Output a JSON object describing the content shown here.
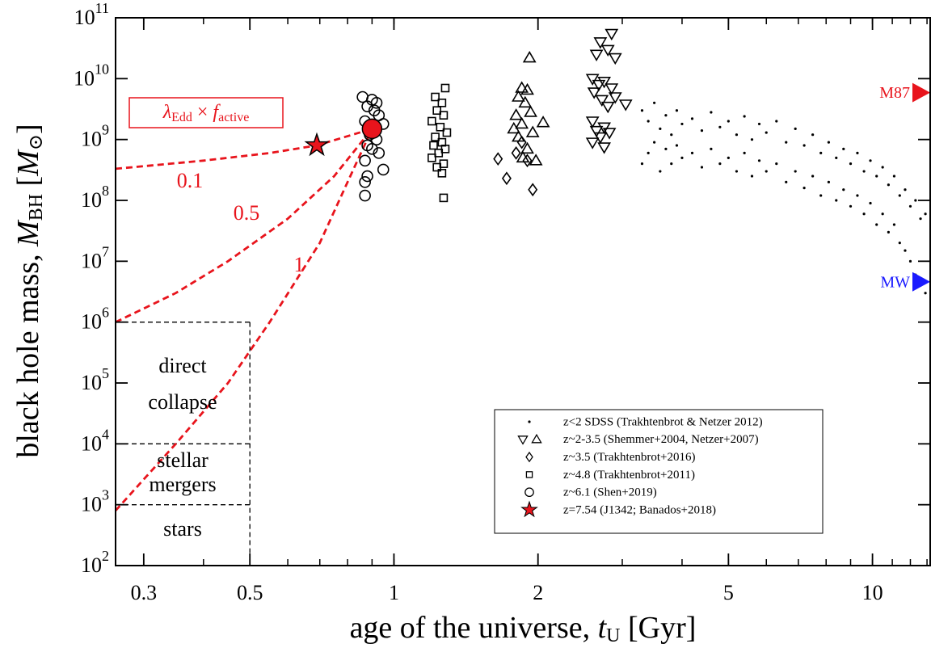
{
  "chart_data": {
    "type": "scatter",
    "xscale": "log",
    "yscale": "log",
    "xlim": [
      0.262,
      13.2
    ],
    "ylim": [
      100,
      100000000000.0
    ],
    "xticks": [
      0.3,
      0.5,
      1,
      2,
      5,
      10
    ],
    "xminor": [
      0.3,
      0.4,
      0.5,
      0.6,
      0.7,
      0.8,
      0.9,
      1,
      2,
      3,
      4,
      5,
      6,
      7,
      8,
      9,
      10,
      11,
      12,
      13
    ],
    "yticks": [
      {
        "value": 100,
        "label": "10",
        "exponent": "2"
      },
      {
        "value": 1000,
        "label": "10",
        "exponent": "3"
      },
      {
        "value": 10000,
        "label": "10",
        "exponent": "4"
      },
      {
        "value": 100000,
        "label": "10",
        "exponent": "5"
      },
      {
        "value": 1000000,
        "label": "10",
        "exponent": "6"
      },
      {
        "value": 10000000.0,
        "label": "10",
        "exponent": "7"
      },
      {
        "value": 100000000.0,
        "label": "10",
        "exponent": "8"
      },
      {
        "value": 1000000000.0,
        "label": "10",
        "exponent": "9"
      },
      {
        "value": 10000000000.0,
        "label": "10",
        "exponent": "10"
      },
      {
        "value": 100000000000.0,
        "label": "10",
        "exponent": "11"
      }
    ],
    "xlabel": {
      "text": "age of the universe, ",
      "sym": "t",
      "sub": "U",
      "unit": " [Gyr]"
    },
    "ylabel": {
      "text": "black hole mass, ",
      "sym": "M",
      "sub": "BH",
      "unit_open": " [",
      "unit_sym": "M",
      "unit_sub": "⊙",
      "unit_close": "]"
    },
    "series": [
      {
        "name": "z<2 SDSS (Trakhtenbrot & Netzer 2012)",
        "marker": "dot",
        "color": "#000000",
        "x": [
          3.3,
          3.3,
          3.4,
          3.4,
          3.5,
          3.5,
          3.6,
          3.6,
          3.7,
          3.7,
          3.8,
          3.8,
          3.9,
          3.9,
          4.0,
          4.0,
          4.2,
          4.2,
          4.4,
          4.4,
          4.6,
          4.6,
          4.8,
          4.8,
          5.0,
          5.0,
          5.2,
          5.2,
          5.4,
          5.4,
          5.6,
          5.6,
          5.8,
          5.8,
          6.0,
          6.0,
          6.3,
          6.3,
          6.6,
          6.6,
          6.9,
          6.9,
          7.2,
          7.2,
          7.5,
          7.5,
          7.8,
          7.8,
          8.1,
          8.1,
          8.4,
          8.4,
          8.7,
          8.7,
          9.0,
          9.0,
          9.3,
          9.3,
          9.6,
          9.6,
          9.9,
          9.9,
          10.2,
          10.2,
          10.5,
          10.5,
          10.8,
          10.8,
          11.1,
          11.1,
          11.4,
          11.4,
          11.7,
          11.7,
          12.0,
          12.0,
          12.3,
          12.3,
          12.6,
          12.6,
          12.9,
          12.9
        ],
        "y": [
          3000000000.0,
          400000000.0,
          2000000000.0,
          600000000.0,
          4000000000.0,
          900000000.0,
          1500000000.0,
          300000000.0,
          2500000000.0,
          700000000.0,
          1200000000.0,
          400000000.0,
          3000000000.0,
          800000000.0,
          1800000000.0,
          500000000.0,
          2200000000.0,
          600000000.0,
          1400000000.0,
          350000000.0,
          2800000000.0,
          700000000.0,
          1600000000.0,
          400000000.0,
          2000000000.0,
          500000000.0,
          1200000000.0,
          300000000.0,
          2400000000.0,
          600000000.0,
          1000000000.0,
          250000000.0,
          1800000000.0,
          450000000.0,
          1300000000.0,
          300000000.0,
          2000000000.0,
          400000000.0,
          900000000.0,
          200000000.0,
          1500000000.0,
          300000000.0,
          800000000.0,
          160000000.0,
          1200000000.0,
          250000000.0,
          600000000.0,
          120000000.0,
          900000000.0,
          200000000.0,
          500000000.0,
          100000000.0,
          700000000.0,
          150000000.0,
          400000000.0,
          80000000.0,
          600000000.0,
          120000000.0,
          300000000.0,
          60000000.0,
          450000000.0,
          90000000.0,
          250000000.0,
          40000000.0,
          350000000.0,
          60000000.0,
          180000000.0,
          30000000.0,
          250000000.0,
          40000000.0,
          120000000.0,
          20000000.0,
          150000000.0,
          15000000.0,
          80000000.0,
          10000000.0,
          100000000.0,
          6000000.0,
          50000000.0,
          4000000.0,
          60000000.0,
          3000000.0
        ]
      },
      {
        "name": "z~2-3.5 (Shemmer+2004, Netzer+2007)",
        "color": "#000000",
        "markers": [
          "down",
          "down",
          "down",
          "down",
          "down",
          "down",
          "down",
          "down",
          "down",
          "down",
          "down",
          "down",
          "down",
          "down",
          "down",
          "down",
          "down",
          "down",
          "down",
          "down",
          "down",
          "up",
          "up",
          "up",
          "up",
          "up",
          "up",
          "up",
          "up",
          "up",
          "up",
          "up",
          "up",
          "up",
          "up",
          "up"
        ],
        "x": [
          2.85,
          2.7,
          2.8,
          2.65,
          2.9,
          2.6,
          2.75,
          2.68,
          2.85,
          2.62,
          2.9,
          2.72,
          3.05,
          2.8,
          2.6,
          2.75,
          2.65,
          2.82,
          2.7,
          2.6,
          2.75,
          1.92,
          1.85,
          1.9,
          1.82,
          1.88,
          1.8,
          1.93,
          1.85,
          2.05,
          1.78,
          1.95,
          1.82,
          1.9,
          1.86,
          1.98
        ],
        "y": [
          55000000000.0,
          40000000000.0,
          30000000000.0,
          25000000000.0,
          22000000000.0,
          10000000000.0,
          9000000000.0,
          8000000000.0,
          7000000000.0,
          6000000000.0,
          5000000000.0,
          4500000000.0,
          3800000000.0,
          3500000000.0,
          2000000000.0,
          1600000000.0,
          1400000000.0,
          1300000000.0,
          1100000000.0,
          900000000.0,
          750000000.0,
          22000000000.0,
          7000000000.0,
          6500000000.0,
          5000000000.0,
          4000000000.0,
          2500000000.0,
          2800000000.0,
          1800000000.0,
          1900000000.0,
          1500000000.0,
          1300000000.0,
          1100000000.0,
          700000000.0,
          500000000.0,
          450000000.0
        ]
      },
      {
        "name": "z~3.5 (Trakhtenbrot+2016)",
        "marker": "diamond",
        "color": "#000000",
        "x": [
          1.65,
          1.72,
          1.95,
          1.85,
          1.8,
          1.9
        ],
        "y": [
          480000000.0,
          230000000.0,
          150000000.0,
          900000000.0,
          600000000.0,
          450000000.0
        ]
      },
      {
        "name": "z~4.8 (Trakhtenbrot+2011)",
        "marker": "square",
        "color": "#000000",
        "x": [
          1.28,
          1.22,
          1.26,
          1.23,
          1.27,
          1.2,
          1.25,
          1.29,
          1.22,
          1.26,
          1.21,
          1.28,
          1.24,
          1.2,
          1.27,
          1.23,
          1.26,
          1.27
        ],
        "y": [
          7000000000.0,
          5000000000.0,
          4000000000.0,
          3000000000.0,
          2500000000.0,
          2000000000.0,
          1600000000.0,
          1300000000.0,
          1100000000.0,
          900000000.0,
          800000000.0,
          700000000.0,
          600000000.0,
          500000000.0,
          400000000.0,
          350000000.0,
          280000000.0,
          110000000.0
        ]
      },
      {
        "name": "z~6.1 (Shen+2019)",
        "marker": "circle",
        "color": "#000000",
        "x": [
          0.86,
          0.9,
          0.92,
          0.88,
          0.91,
          0.93,
          0.87,
          0.95,
          0.89,
          0.92,
          0.88,
          0.9,
          0.93,
          0.87,
          0.95,
          0.88,
          0.87,
          0.87
        ],
        "y": [
          5000000000.0,
          4500000000.0,
          4000000000.0,
          3500000000.0,
          3000000000.0,
          2500000000.0,
          2000000000.0,
          1800000000.0,
          1200000000.0,
          1000000000.0,
          800000000.0,
          700000000.0,
          600000000.0,
          450000000.0,
          320000000.0,
          250000000.0,
          200000000.0,
          120000000.0
        ]
      },
      {
        "name": "z=7.54 (J1342; Banados+2018)",
        "marker": "star",
        "color": "#e8141c",
        "x": [
          0.69
        ],
        "y": [
          800000000.0
        ]
      }
    ],
    "highlight": {
      "x": 0.9,
      "y": 1500000000.0,
      "color": "#e8141c"
    },
    "curves": [
      {
        "label": "0.1",
        "color": "#e8141c",
        "x": [
          0.262,
          0.4,
          0.55,
          0.69,
          0.9
        ],
        "y": [
          330000000.0,
          450000000.0,
          600000000.0,
          800000000.0,
          1500000000.0
        ]
      },
      {
        "label": "0.5",
        "color": "#e8141c",
        "x": [
          0.262,
          0.35,
          0.45,
          0.6,
          0.75,
          0.9
        ],
        "y": [
          1000000.0,
          3000000.0,
          10000000.0,
          50000000.0,
          250000000.0,
          1500000000.0
        ]
      },
      {
        "label": "1",
        "color": "#e8141c",
        "x": [
          0.262,
          0.35,
          0.45,
          0.55,
          0.7,
          0.8,
          0.9
        ],
        "y": [
          800,
          10000.0,
          100000.0,
          1000000.0,
          20000000.0,
          200000000.0,
          1500000000.0
        ]
      }
    ],
    "annotation": {
      "sym": "λ",
      "sub": "Edd",
      "times": " × ",
      "sym2": "f",
      "sub2": "active"
    },
    "seeds": {
      "xmax": 0.5,
      "boundaries": [
        1000000,
        10000,
        1000
      ],
      "labels": [
        [
          "direct",
          "collapse"
        ],
        [
          "stellar",
          "mergers"
        ],
        [
          "stars"
        ]
      ]
    },
    "references": [
      {
        "name": "M87",
        "y": 5900000000.0,
        "color": "#e8141c"
      },
      {
        "name": "MW",
        "y": 4600000.0,
        "color": "#1a1aff"
      }
    ]
  }
}
